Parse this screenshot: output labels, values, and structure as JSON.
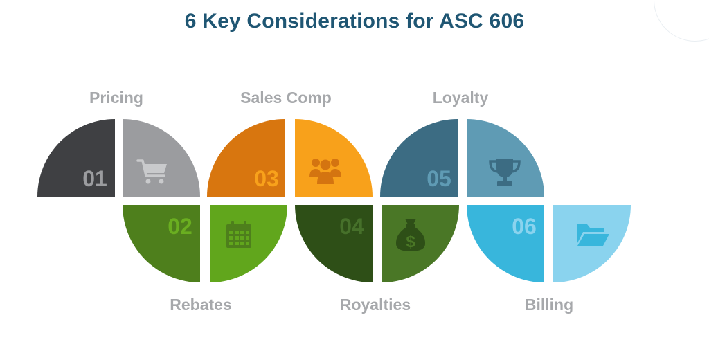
{
  "title": "6 Key Considerations for ASC 606",
  "items": [
    {
      "number": "01",
      "label": "Pricing",
      "icon": "cart-icon",
      "color_dark": "#3f4043",
      "color_light": "#9b9c9f",
      "number_color": "#9b9c9f",
      "icon_color": "#c9cacc"
    },
    {
      "number": "02",
      "label": "Rebates",
      "icon": "calendar-icon",
      "color_dark": "#4e7f1c",
      "color_light": "#61a61c",
      "number_color": "#6aae20",
      "icon_color": "#4e7f1c"
    },
    {
      "number": "03",
      "label": "Sales Comp",
      "icon": "people-icon",
      "color_dark": "#d8760f",
      "color_light": "#f8a11b",
      "number_color": "#f8a11b",
      "icon_color": "#d47410"
    },
    {
      "number": "04",
      "label": "Royalties",
      "icon": "money-bag-icon",
      "color_dark": "#2e4f17",
      "color_light": "#4a7726",
      "number_color": "#46702a",
      "icon_color": "#2e4f17"
    },
    {
      "number": "05",
      "label": "Loyalty",
      "icon": "trophy-icon",
      "color_dark": "#3c6c83",
      "color_light": "#5f9bb4",
      "number_color": "#5f9bb4",
      "icon_color": "#3c6c83"
    },
    {
      "number": "06",
      "label": "Billing",
      "icon": "folder-icon",
      "color_dark": "#38b6dc",
      "color_light": "#8ad3ee",
      "number_color": "#8ad3ee",
      "icon_color": "#38b6dc"
    }
  ]
}
